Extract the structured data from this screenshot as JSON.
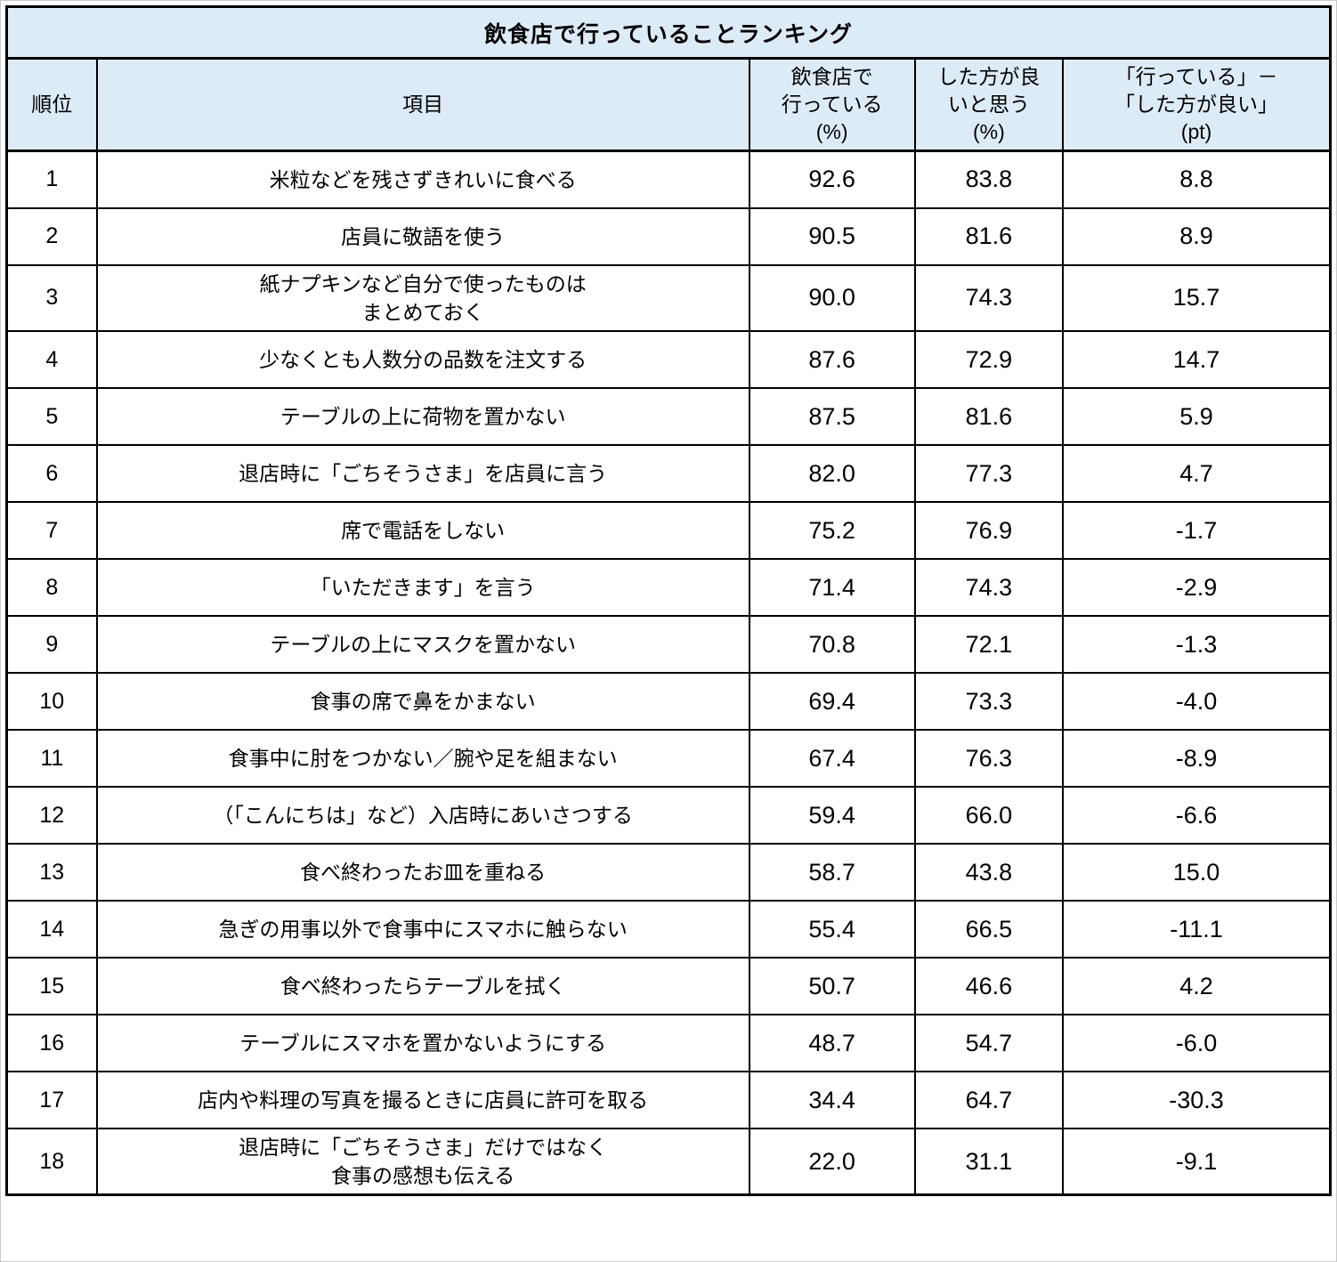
{
  "colors": {
    "header_bg": "#ddebf7",
    "border": "#000000",
    "row_bg": "#ffffff",
    "text": "#000000"
  },
  "chart_data": {
    "type": "table",
    "title": "飲食店で行っていることランキング",
    "columns": [
      "順位",
      "項目",
      "飲食店で\n行っている\n(%)",
      "した方が良\nいと思う\n(%)",
      "「行っている」－\n「した方が良い」\n(pt)"
    ],
    "rows": [
      {
        "rank": "1",
        "item": "米粒などを残さずきれいに食べる",
        "doing_pct": "92.6",
        "should_pct": "83.8",
        "diff_pt": "8.8"
      },
      {
        "rank": "2",
        "item": "店員に敬語を使う",
        "doing_pct": "90.5",
        "should_pct": "81.6",
        "diff_pt": "8.9"
      },
      {
        "rank": "3",
        "item": "紙ナプキンなど自分で使ったものは\nまとめておく",
        "doing_pct": "90.0",
        "should_pct": "74.3",
        "diff_pt": "15.7"
      },
      {
        "rank": "4",
        "item": "少なくとも人数分の品数を注文する",
        "doing_pct": "87.6",
        "should_pct": "72.9",
        "diff_pt": "14.7"
      },
      {
        "rank": "5",
        "item": "テーブルの上に荷物を置かない",
        "doing_pct": "87.5",
        "should_pct": "81.6",
        "diff_pt": "5.9"
      },
      {
        "rank": "6",
        "item": "退店時に「ごちそうさま」を店員に言う",
        "doing_pct": "82.0",
        "should_pct": "77.3",
        "diff_pt": "4.7"
      },
      {
        "rank": "7",
        "item": "席で電話をしない",
        "doing_pct": "75.2",
        "should_pct": "76.9",
        "diff_pt": "-1.7"
      },
      {
        "rank": "8",
        "item": "「いただきます」を言う",
        "doing_pct": "71.4",
        "should_pct": "74.3",
        "diff_pt": "-2.9"
      },
      {
        "rank": "9",
        "item": "テーブルの上にマスクを置かない",
        "doing_pct": "70.8",
        "should_pct": "72.1",
        "diff_pt": "-1.3"
      },
      {
        "rank": "10",
        "item": "食事の席で鼻をかまない",
        "doing_pct": "69.4",
        "should_pct": "73.3",
        "diff_pt": "-4.0"
      },
      {
        "rank": "11",
        "item": "食事中に肘をつかない／腕や足を組まない",
        "doing_pct": "67.4",
        "should_pct": "76.3",
        "diff_pt": "-8.9"
      },
      {
        "rank": "12",
        "item": "（「こんにちは」など）入店時にあいさつする",
        "doing_pct": "59.4",
        "should_pct": "66.0",
        "diff_pt": "-6.6"
      },
      {
        "rank": "13",
        "item": "食べ終わったお皿を重ねる",
        "doing_pct": "58.7",
        "should_pct": "43.8",
        "diff_pt": "15.0"
      },
      {
        "rank": "14",
        "item": "急ぎの用事以外で食事中にスマホに触らない",
        "doing_pct": "55.4",
        "should_pct": "66.5",
        "diff_pt": "-11.1"
      },
      {
        "rank": "15",
        "item": "食べ終わったらテーブルを拭く",
        "doing_pct": "50.7",
        "should_pct": "46.6",
        "diff_pt": "4.2"
      },
      {
        "rank": "16",
        "item": "テーブルにスマホを置かないようにする",
        "doing_pct": "48.7",
        "should_pct": "54.7",
        "diff_pt": "-6.0"
      },
      {
        "rank": "17",
        "item": "店内や料理の写真を撮るときに店員に許可を取る",
        "doing_pct": "34.4",
        "should_pct": "64.7",
        "diff_pt": "-30.3"
      },
      {
        "rank": "18",
        "item": "退店時に「ごちそうさま」だけではなく\n食事の感想も伝える",
        "doing_pct": "22.0",
        "should_pct": "31.1",
        "diff_pt": "-9.1"
      }
    ]
  }
}
